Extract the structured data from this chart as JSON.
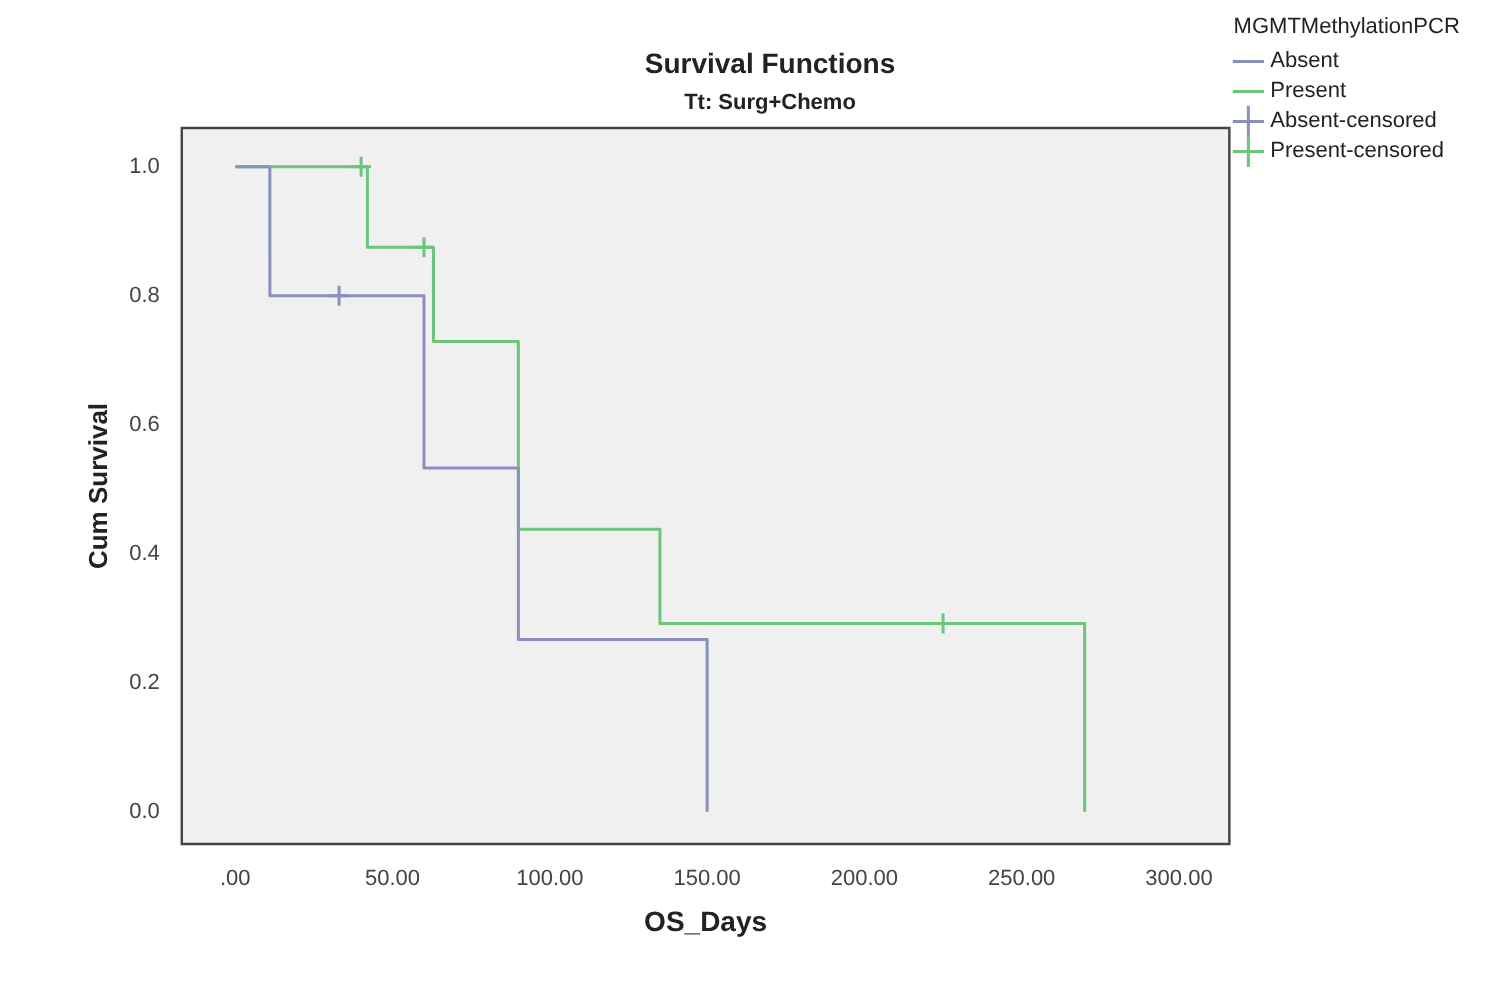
{
  "chart_data": {
    "type": "step",
    "title": "Survival Functions",
    "subtitle": "Tt: Surg+Chemo",
    "xlabel": "OS_Days",
    "ylabel": "Cum Survival",
    "legend_title": "MGMTMethylationPCR",
    "series": [
      {
        "name": "Absent",
        "color": "#8a8fc0",
        "x": [
          0,
          11,
          60,
          90,
          150
        ],
        "values": [
          1,
          0.8,
          0.533,
          0.267,
          0
        ]
      },
      {
        "name": "Present",
        "color": "#6cc57a",
        "x": [
          0,
          42,
          63,
          90,
          135,
          270
        ],
        "values": [
          1,
          0.875,
          0.729,
          0.438,
          0.292,
          0
        ]
      },
      {
        "name": "Absent-censored",
        "type": "scatter",
        "marker": "cross",
        "color": "#8a8fc0",
        "x": [
          33
        ],
        "values": [
          0.8
        ]
      },
      {
        "name": "Present-censored",
        "type": "scatter",
        "marker": "cross",
        "color": "#6cc57a",
        "x": [
          40,
          60,
          225
        ],
        "values": [
          1,
          0.875,
          0.292
        ]
      }
    ],
    "xlim": [
      -17,
      316
    ],
    "ylim": [
      -0.05,
      1.06
    ],
    "xticks": [
      {
        "value": 0,
        "label": ".00"
      },
      {
        "value": 50,
        "label": "50.00"
      },
      {
        "value": 100,
        "label": "100.00"
      },
      {
        "value": 150,
        "label": "150.00"
      },
      {
        "value": 200,
        "label": "200.00"
      },
      {
        "value": 250,
        "label": "250.00"
      },
      {
        "value": 300,
        "label": "300.00"
      }
    ],
    "yticks": [
      {
        "value": 0,
        "label": "0.0"
      },
      {
        "value": 0.2,
        "label": "0.2"
      },
      {
        "value": 0.4,
        "label": "0.4"
      },
      {
        "value": 0.6,
        "label": "0.6"
      },
      {
        "value": 0.8,
        "label": "0.8"
      },
      {
        "value": 1,
        "label": "1.0"
      }
    ],
    "grid": false,
    "legend": "top right"
  }
}
